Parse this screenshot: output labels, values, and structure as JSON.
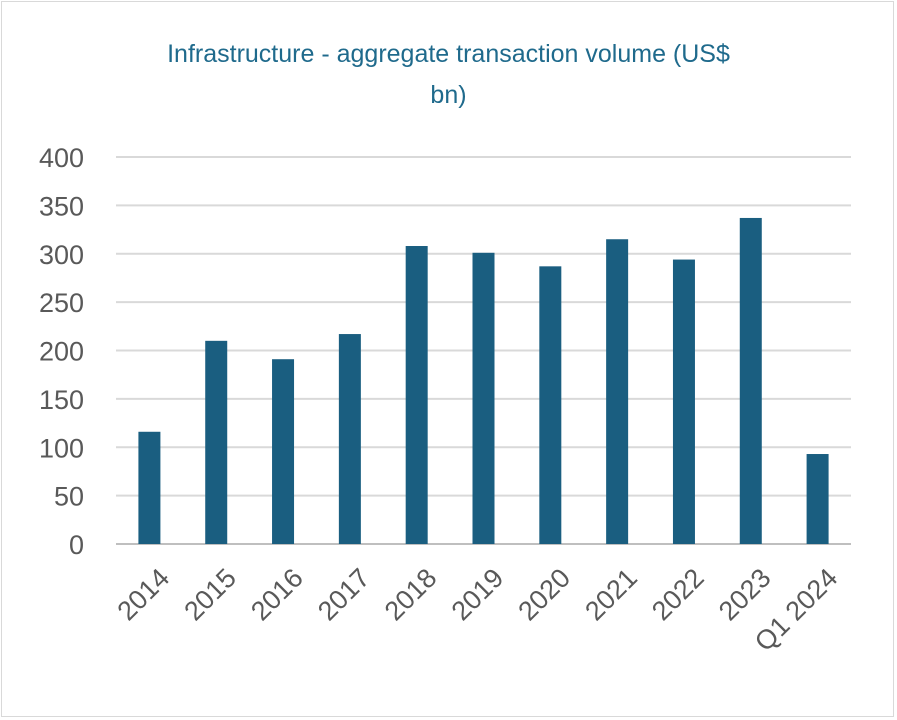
{
  "chart_data": {
    "type": "bar",
    "title": "Infrastructure - aggregate transaction volume (US$\nbn)",
    "categories": [
      "2014",
      "2015",
      "2016",
      "2017",
      "2018",
      "2019",
      "2020",
      "2021",
      "2022",
      "2023",
      "Q1 2024"
    ],
    "values": [
      116,
      210,
      191,
      217,
      308,
      301,
      287,
      315,
      294,
      337,
      93
    ],
    "ylim": [
      0,
      400
    ],
    "yticks": [
      0,
      50,
      100,
      150,
      200,
      250,
      300,
      350,
      400
    ],
    "grid": true,
    "bar_color": "#1a5e80",
    "title_color": "#1f6a8c"
  }
}
